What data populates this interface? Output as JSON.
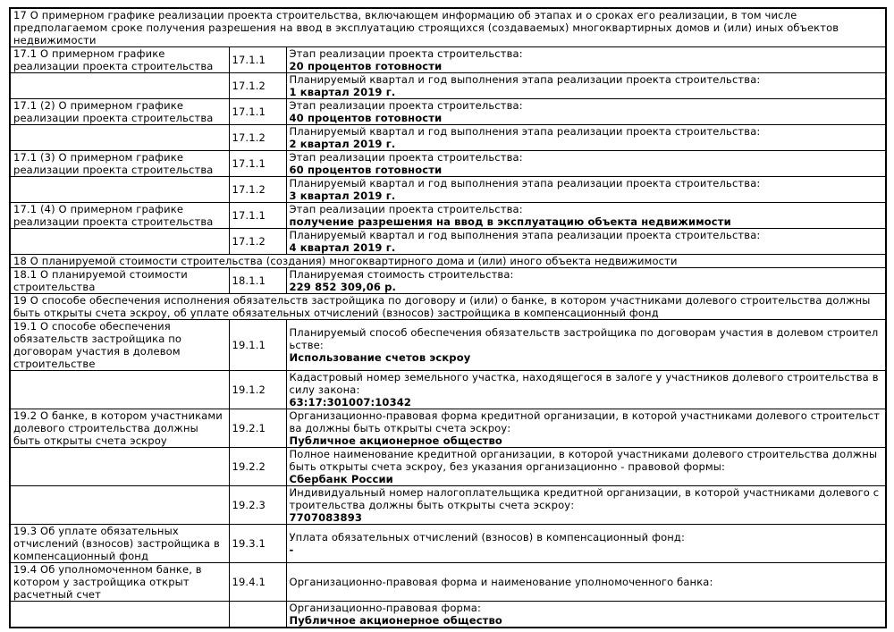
{
  "table": {
    "rows": [
      {
        "type": "section",
        "text": "17 О примерном графике реализации проекта строительства, включающем информацию об этапах и о сроках его реализации, в том числе предполагаемом сроке получения разрешения на ввод в эксплуатацию строящихся (создаваемых) многоквартирных домов и (или) иных объектов недвижимости"
      },
      {
        "type": "item",
        "topic": "17.1 О примерном графике реализации проекта строительства",
        "code": "17.1.1",
        "label": "Этап реализации проекта строительства:",
        "value": "20 процентов готовности"
      },
      {
        "type": "item",
        "topic": "",
        "code": "17.1.2",
        "label": "Планируемый квартал и год выполнения этапа реализации проекта строительства:",
        "value": "1 квартал 2019 г."
      },
      {
        "type": "item",
        "topic": "17.1 (2) О примерном графике реализации проекта строительства",
        "code": "17.1.1",
        "label": "Этап реализации проекта строительства:",
        "value": "40 процентов готовности"
      },
      {
        "type": "item",
        "topic": "",
        "code": "17.1.2",
        "label": "Планируемый квартал и год выполнения этапа реализации проекта строительства:",
        "value": "2 квартал 2019 г."
      },
      {
        "type": "item",
        "topic": "17.1 (3) О примерном графике реализации проекта строительства",
        "code": "17.1.1",
        "label": "Этап реализации проекта строительства:",
        "value": "60 процентов готовности"
      },
      {
        "type": "item",
        "topic": "",
        "code": "17.1.2",
        "label": "Планируемый квартал и год выполнения этапа реализации проекта строительства:",
        "value": "3 квартал 2019 г."
      },
      {
        "type": "item",
        "topic": "17.1 (4) О примерном графике реализации проекта строительства",
        "code": "17.1.1",
        "label": "Этап реализации проекта строительства:",
        "value": "получение разрешения на ввод в эксплуатацию объекта недвижимости"
      },
      {
        "type": "item",
        "topic": "",
        "code": "17.1.2",
        "label": "Планируемый квартал и год выполнения этапа реализации проекта строительства:",
        "value": "4 квартал 2019 г."
      },
      {
        "type": "section",
        "text": "18 О планируемой стоимости строительства (создания) многоквартирного дома и (или) иного объекта недвижимости"
      },
      {
        "type": "item",
        "topic": "18.1 О планируемой стоимости строительства",
        "code": "18.1.1",
        "label": "Планируемая стоимость строительства:",
        "value": "229 852 309,06 р."
      },
      {
        "type": "section",
        "text": "19 О способе обеспечения исполнения обязательств застройщика по договору и (или) о банке, в котором участниками долевого строительства должны быть открыты счета эскроу, об уплате обязательных отчислений (взносов) застройщика в компенсационный фонд"
      },
      {
        "type": "item",
        "topic": "19.1 О способе обеспечения обязательств застройщика по договорам участия в долевом строительстве",
        "code": "19.1.1",
        "label": "Планируемый способ обеспечения обязательств застройщика по договорам участия в долевом строительстве:",
        "value": "Использование счетов эскроу"
      },
      {
        "type": "item",
        "topic": "",
        "code": "19.1.2",
        "label": "Кадастровый номер земельного участка, находящегося в залоге у участников долевого строительства в силу закона:",
        "value": "63:17:301007:10342"
      },
      {
        "type": "item",
        "topic": "19.2 О банке, в котором участниками долевого строительства должны быть открыты счета эскроу",
        "code": "19.2.1",
        "label": "Организационно-правовая форма кредитной организации, в которой участниками долевого строительства должны быть открыты счета эскроу:",
        "value": "Публичное акционерное общество"
      },
      {
        "type": "item",
        "topic": "",
        "code": "19.2.2",
        "label": "Полное наименование кредитной организации, в которой участниками долевого строительства должны быть открыты счета эскроу, без указания организационно - правовой формы:",
        "value": "Сбербанк России"
      },
      {
        "type": "item",
        "topic": "",
        "code": "19.2.3",
        "label": "Индивидуальный номер налогоплательщика кредитной организации, в которой участниками долевого строительства должны быть открыты счета эскроу:",
        "value": "7707083893"
      },
      {
        "type": "item",
        "topic": "19.3 Об уплате обязательных отчислений (взносов) застройщика в компенсационный фонд",
        "code": "19.3.1",
        "label": "Уплата обязательных отчислений (взносов) в компенсационный фонд:",
        "value": "-"
      },
      {
        "type": "item",
        "topic": "19.4 Об уполномоченном банке, в котором у застройщика открыт расчетный счет",
        "code": "19.4.1",
        "label": "Организационно-правовая форма и наименование уполномоченного банка:",
        "value": ""
      },
      {
        "type": "item",
        "topic": "",
        "code": "",
        "label": "Организационно-правовая форма:",
        "value": "Публичное акционерное общество"
      }
    ]
  }
}
